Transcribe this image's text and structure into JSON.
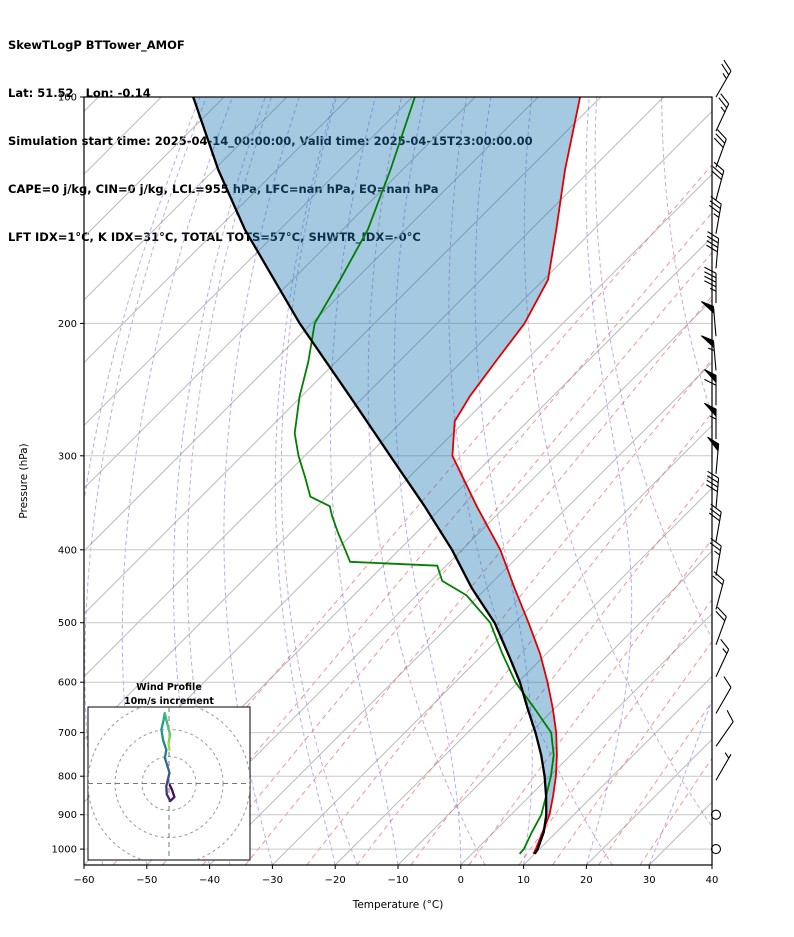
{
  "header": {
    "line1": "SkewTLogP BTTower_AMOF",
    "line2": "Lat: 51.52   Lon: -0.14",
    "line3": "Simulation start time: 2025-04-14_00:00:00, Valid time: 2025-04-15T23:00:00.00",
    "line4": "CAPE=0 j/kg, CIN=0 j/kg, LCL=955 hPa, LFC=nan hPa, EQ=nan hPa",
    "line5": "LFT IDX=1°C, K IDX=31°C, TOTAL TOTS=57°C, SHWTR_IDX=-0°C"
  },
  "chart_data": {
    "type": "skewt_logp",
    "title": "SkewTLogP BTTower_AMOF",
    "station": {
      "lat": 51.52,
      "lon": -0.14,
      "name": "BTTower_AMOF"
    },
    "indices": {
      "CAPE_jkg": 0,
      "CIN_jkg": 0,
      "LCL_hPa": 955,
      "LFC_hPa": "nan",
      "EQ_hPa": "nan",
      "LFT_IDX_C": 1,
      "K_IDX_C": 31,
      "TOTAL_TOTS_C": 57,
      "SHWTR_IDX_C": 0
    },
    "axes": {
      "pressure": {
        "label": "Pressure (hPa)",
        "scale": "log",
        "range": [
          100,
          1050
        ],
        "ticks": [
          100,
          200,
          300,
          400,
          500,
          600,
          700,
          800,
          900,
          1000
        ]
      },
      "temperature": {
        "label": "Temperature (°C)",
        "range": [
          -60,
          40
        ],
        "skew_deg": 45,
        "ticks": [
          -60,
          -50,
          -40,
          -30,
          -20,
          -10,
          0,
          10,
          20,
          30,
          40
        ]
      }
    },
    "series": {
      "temperature": {
        "name": "temperature",
        "color": "#e00000",
        "width": 1.8,
        "points": [
          [
            1015,
            9.8
          ],
          [
            1000,
            9.4
          ],
          [
            950,
            7.8
          ],
          [
            900,
            6.1
          ],
          [
            850,
            3.7
          ],
          [
            800,
            1.0
          ],
          [
            750,
            -2.2
          ],
          [
            700,
            -5.9
          ],
          [
            650,
            -10.3
          ],
          [
            600,
            -15.3
          ],
          [
            550,
            -21.0
          ],
          [
            500,
            -27.8
          ],
          [
            450,
            -35.5
          ],
          [
            400,
            -43.9
          ],
          [
            350,
            -54.6
          ],
          [
            300,
            -66.5
          ],
          [
            270,
            -71.6
          ],
          [
            250,
            -73.2
          ],
          [
            225,
            -74.6
          ],
          [
            200,
            -76.1
          ],
          [
            175,
            -79.3
          ],
          [
            150,
            -86.0
          ],
          [
            125,
            -94.1
          ],
          [
            100,
            -103.3
          ]
        ]
      },
      "dewpoint": {
        "name": "dewpoint",
        "color": "#007f00",
        "width": 1.8,
        "points": [
          [
            1015,
            7.6
          ],
          [
            1000,
            7.5
          ],
          [
            950,
            6.1
          ],
          [
            900,
            4.8
          ],
          [
            850,
            2.6
          ],
          [
            800,
            0.2
          ],
          [
            750,
            -2.7
          ],
          [
            700,
            -6.7
          ],
          [
            650,
            -13.2
          ],
          [
            600,
            -20.4
          ],
          [
            550,
            -27.0
          ],
          [
            500,
            -33.9
          ],
          [
            460,
            -42.0
          ],
          [
            440,
            -48.2
          ],
          [
            420,
            -51.4
          ],
          [
            415,
            -65.9
          ],
          [
            400,
            -68.6
          ],
          [
            380,
            -72.4
          ],
          [
            360,
            -76.2
          ],
          [
            350,
            -78.0
          ],
          [
            340,
            -82.6
          ],
          [
            320,
            -86.6
          ],
          [
            300,
            -91.0
          ],
          [
            280,
            -95.2
          ],
          [
            250,
            -100.3
          ],
          [
            225,
            -104.4
          ],
          [
            200,
            -109.5
          ],
          [
            175,
            -112.4
          ],
          [
            150,
            -116.0
          ],
          [
            125,
            -121.9
          ],
          [
            100,
            -129.6
          ]
        ]
      },
      "parcel": {
        "name": "parcel",
        "color": "#000000",
        "width": 2.3,
        "points": [
          [
            1015,
            10.0
          ],
          [
            1000,
            9.7
          ],
          [
            950,
            8.0
          ],
          [
            900,
            5.6
          ],
          [
            850,
            2.6
          ],
          [
            800,
            -0.8
          ],
          [
            750,
            -4.7
          ],
          [
            700,
            -9.2
          ],
          [
            650,
            -14.3
          ],
          [
            600,
            -19.7
          ],
          [
            550,
            -26.1
          ],
          [
            500,
            -33.2
          ],
          [
            450,
            -42.3
          ],
          [
            400,
            -51.6
          ],
          [
            350,
            -62.9
          ],
          [
            300,
            -76.4
          ],
          [
            250,
            -92.3
          ],
          [
            200,
            -111.9
          ],
          [
            150,
            -135.6
          ],
          [
            125,
            -149.3
          ],
          [
            100,
            -164.9
          ]
        ]
      }
    },
    "shading": {
      "between": [
        "parcel",
        "temperature"
      ],
      "color": "#1f77b4",
      "opacity": 0.4
    },
    "background": {
      "isotherms": {
        "color": "#b9b9b9",
        "min": -180,
        "max": 40,
        "step": 10
      },
      "dry_adiabats": {
        "color": "#9467bd",
        "opacity": 0.55,
        "theta_min": -60,
        "theta_max": 140,
        "step": 20
      },
      "moist_adiabats": {
        "color": "#4d4dee",
        "opacity": 0.45,
        "t_start_min": -60,
        "t_start_max": 60,
        "step": 10
      },
      "mixing_ratio_gkg": {
        "color": "#f07070",
        "opacity": 0.75,
        "values": [
          0.02,
          0.05,
          0.1,
          0.2,
          0.5,
          1,
          2,
          4,
          7,
          10,
          16,
          24
        ]
      },
      "pressure_gridlines": {
        "color": "#c8c8c8"
      }
    },
    "wind_barbs": {
      "units": "kt",
      "columns": [
        "pressure_hPa",
        "speed_kt",
        "direction_deg"
      ],
      "levels": [
        [
          1000,
          0,
          0
        ],
        [
          900,
          0,
          0
        ],
        [
          810,
          5,
          30
        ],
        [
          730,
          10,
          35
        ],
        [
          660,
          10,
          30
        ],
        [
          590,
          15,
          25
        ],
        [
          535,
          20,
          20
        ],
        [
          480,
          20,
          15
        ],
        [
          433,
          25,
          10
        ],
        [
          390,
          30,
          10
        ],
        [
          352,
          40,
          5
        ],
        [
          317,
          50,
          5
        ],
        [
          285,
          55,
          0
        ],
        [
          257,
          60,
          0
        ],
        [
          231,
          55,
          355
        ],
        [
          208,
          50,
          355
        ],
        [
          188,
          45,
          0
        ],
        [
          169,
          40,
          5
        ],
        [
          152,
          35,
          10
        ],
        [
          137,
          30,
          15
        ],
        [
          124,
          30,
          20
        ],
        [
          111,
          25,
          25
        ],
        [
          100,
          25,
          30
        ]
      ]
    },
    "hodograph": {
      "title": "Wind Profile",
      "subtitle": "10m/s increment",
      "ring_increment_ms": 10,
      "rings_ms": [
        10,
        20,
        30
      ],
      "points_uv_ms": [
        [
          0.3,
          -0.6
        ],
        [
          1.2,
          -2.5
        ],
        [
          2.0,
          -5.0
        ],
        [
          0.5,
          -6.5
        ],
        [
          -0.8,
          -4.0
        ],
        [
          -1.0,
          -1.0
        ],
        [
          -0.4,
          1.5
        ],
        [
          0.2,
          4.0
        ],
        [
          -0.6,
          6.5
        ],
        [
          -1.5,
          9.5
        ],
        [
          -1.0,
          12.5
        ],
        [
          -2.2,
          16.0
        ],
        [
          -2.8,
          20.0
        ],
        [
          -2.0,
          23.5
        ],
        [
          -1.6,
          26.0
        ],
        [
          -0.6,
          22.0
        ],
        [
          0.4,
          18.0
        ],
        [
          -0.2,
          15.0
        ],
        [
          0.2,
          12.5
        ]
      ],
      "segment_colors": [
        "#440154",
        "#47095d",
        "#471866",
        "#482576",
        "#46327e",
        "#3f4788",
        "#39558c",
        "#32638d",
        "#2d6e8e",
        "#287a8e",
        "#23868e",
        "#1f928c",
        "#1e9d89",
        "#24a985",
        "#35b779",
        "#53c568",
        "#76d153",
        "#a0da39"
      ]
    }
  }
}
